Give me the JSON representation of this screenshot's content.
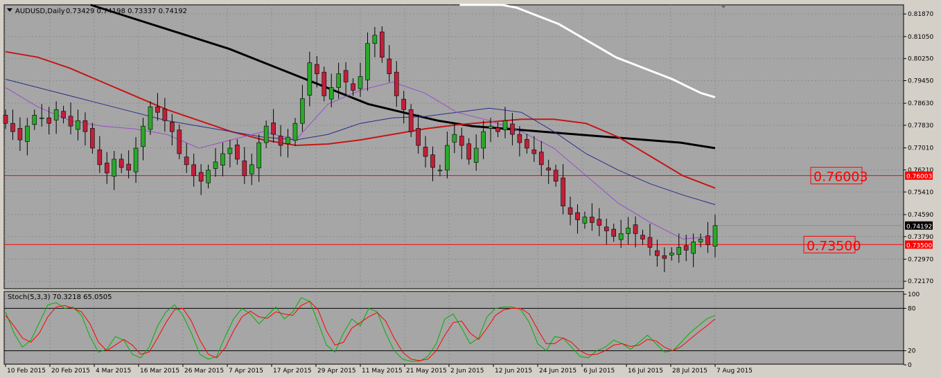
{
  "colors": {
    "background": "#a6a6a6",
    "bull": "#2aa82a",
    "bear": "#c0203a",
    "ma_black": "#000000",
    "ma_white": "#ffffff",
    "ma_red": "#c81414",
    "ma_navy": "#2a2a8a",
    "ma_violet": "#9a4ccc",
    "level_line": "#ff0000",
    "stoch_main": "#00b000",
    "stoch_signal": "#ff0000"
  },
  "chart_data": [
    {
      "type": "candlestick",
      "title": "AUDUSD,Daily",
      "ohlc_header": "0.73429 0.74198 0.73337 0.74192",
      "ylim": [
        0.72,
        0.8195
      ],
      "y_ticks": [
        "0.81870",
        "0.81050",
        "0.80250",
        "0.79450",
        "0.78630",
        "0.77830",
        "0.77010",
        "0.76210",
        "0.75410",
        "0.74590",
        "0.73790",
        "0.72970",
        "0.72170"
      ],
      "x_ticks": [
        "10 Feb 2015",
        "20 Feb 2015",
        "4 Mar 2015",
        "16 Mar 2015",
        "26 Mar 2015",
        "7 Apr 2015",
        "17 Apr 2015",
        "29 Apr 2015",
        "11 May 2015",
        "21 May 2015",
        "2 Jun 2015",
        "12 Jun 2015",
        "24 Jun 2015",
        "6 Jul 2015",
        "16 Jul 2015",
        "28 Jul 2015",
        "7 Aug 2015"
      ],
      "close_trend": [
        0.779,
        0.776,
        0.773,
        0.778,
        0.782,
        0.781,
        0.779,
        0.784,
        0.781,
        0.778,
        0.78,
        0.776,
        0.77,
        0.764,
        0.761,
        0.766,
        0.763,
        0.762,
        0.77,
        0.778,
        0.785,
        0.783,
        0.78,
        0.776,
        0.768,
        0.764,
        0.76,
        0.758,
        0.762,
        0.765,
        0.768,
        0.77,
        0.766,
        0.76,
        0.764,
        0.772,
        0.778,
        0.775,
        0.771,
        0.774,
        0.779,
        0.788,
        0.801,
        0.797,
        0.789,
        0.792,
        0.797,
        0.794,
        0.791,
        0.796,
        0.808,
        0.811,
        0.803,
        0.797,
        0.789,
        0.784,
        0.776,
        0.771,
        0.767,
        0.763,
        0.762,
        0.771,
        0.775,
        0.771,
        0.766,
        0.77,
        0.776,
        0.778,
        0.776,
        0.78,
        0.775,
        0.772,
        0.77,
        0.768,
        0.764,
        0.762,
        0.758,
        0.749,
        0.746,
        0.744,
        0.745,
        0.743,
        0.742,
        0.74,
        0.738,
        0.739,
        0.741,
        0.739,
        0.737,
        0.734,
        0.731,
        0.73,
        0.732,
        0.734,
        0.733,
        0.736,
        0.737,
        0.735,
        0.7419
      ],
      "series": [
        {
          "values": [
            0.8225,
            0.818,
            0.814,
            0.81,
            0.806,
            0.801,
            0.796,
            0.791,
            0.786,
            0.783,
            0.78,
            0.778,
            0.777,
            0.776,
            0.775,
            0.774,
            0.773,
            0.772,
            0.77
          ]
        },
        {
          "values": [
            0.8235,
            0.823,
            0.8225,
            0.822,
            0.821,
            0.819,
            0.817,
            0.815,
            0.812,
            0.809,
            0.806,
            0.803,
            0.801,
            0.799,
            0.797,
            0.795,
            0.7925,
            0.79,
            0.7885
          ]
        },
        {
          "values": [
            0.805,
            0.803,
            0.799,
            0.794,
            0.789,
            0.784,
            0.78,
            0.776,
            0.773,
            0.771,
            0.7715,
            0.773,
            0.775,
            0.777,
            0.7785,
            0.7795,
            0.7805,
            0.7805,
            0.779,
            0.774,
            0.767,
            0.76,
            0.7555
          ]
        },
        {
          "values": [
            0.795,
            0.792,
            0.789,
            0.786,
            0.783,
            0.78,
            0.778,
            0.776,
            0.774,
            0.773,
            0.775,
            0.779,
            0.781,
            0.7815,
            0.783,
            0.7845,
            0.783,
            0.776,
            0.768,
            0.762,
            0.757,
            0.753,
            0.7495
          ]
        },
        {
          "values": [
            0.792,
            0.785,
            0.78,
            0.778,
            0.777,
            0.775,
            0.77,
            0.773,
            0.776,
            0.773,
            0.786,
            0.791,
            0.794,
            0.79,
            0.783,
            0.78,
            0.776,
            0.77,
            0.76,
            0.75,
            0.743,
            0.737,
            0.738
          ]
        }
      ],
      "levels": [
        {
          "value": 0.76003,
          "label": "0.76003"
        },
        {
          "value": 0.735,
          "label": "0.73500"
        }
      ],
      "last_price_label": "0.74192"
    },
    {
      "type": "line",
      "title": "Stoch(5,3,3) 70.3218 65.0505",
      "ylim": [
        0,
        100
      ],
      "y_ticks": [
        "100",
        "80",
        "20",
        "0"
      ],
      "levels": [
        80,
        20
      ],
      "series": [
        {
          "values": [
            75,
            45,
            25,
            35,
            60,
            85,
            88,
            80,
            82,
            70,
            40,
            18,
            22,
            40,
            35,
            15,
            10,
            25,
            55,
            75,
            85,
            70,
            45,
            15,
            8,
            12,
            40,
            65,
            80,
            72,
            58,
            70,
            82,
            65,
            75,
            95,
            90,
            60,
            28,
            18,
            45,
            65,
            55,
            80,
            75,
            45,
            20,
            8,
            5,
            5,
            12,
            30,
            65,
            72,
            52,
            30,
            38,
            68,
            80,
            82,
            82,
            78,
            60,
            30,
            20,
            40,
            38,
            25,
            12,
            10,
            20,
            25,
            35,
            30,
            22,
            32,
            42,
            30,
            18,
            20,
            32,
            45,
            55,
            65,
            70
          ]
        },
        {
          "values": [
            70,
            55,
            38,
            32,
            45,
            68,
            82,
            84,
            80,
            75,
            58,
            32,
            20,
            28,
            36,
            28,
            15,
            18,
            38,
            60,
            78,
            80,
            62,
            35,
            15,
            10,
            24,
            48,
            68,
            76,
            68,
            66,
            75,
            72,
            70,
            84,
            90,
            78,
            48,
            28,
            32,
            52,
            60,
            68,
            74,
            62,
            38,
            18,
            8,
            6,
            8,
            20,
            42,
            60,
            62,
            45,
            36,
            52,
            70,
            78,
            80,
            80,
            72,
            50,
            30,
            30,
            38,
            32,
            20,
            14,
            15,
            20,
            28,
            30,
            26,
            28,
            36,
            34,
            25,
            20,
            26,
            36,
            46,
            55,
            65
          ]
        }
      ]
    }
  ]
}
